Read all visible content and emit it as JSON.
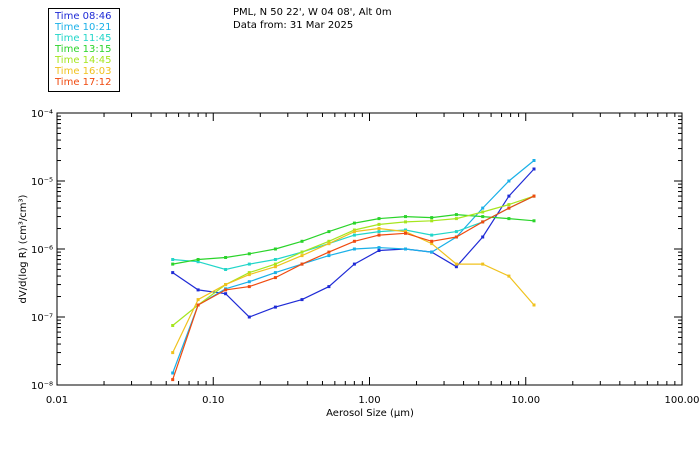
{
  "header": {
    "station": "PML, N 50 22', W 04 08', Alt 0m",
    "date": "Data from: 31 Mar 2025"
  },
  "legend": [
    {
      "label": "Time 08:46",
      "color": "#1f2bd6"
    },
    {
      "label": "Time 10:21",
      "color": "#1ab0e8"
    },
    {
      "label": "Time 11:45",
      "color": "#22d6c9"
    },
    {
      "label": "Time 13:15",
      "color": "#2ad42a"
    },
    {
      "label": "Time 14:45",
      "color": "#a6e61e"
    },
    {
      "label": "Time 16:03",
      "color": "#f0c21e"
    },
    {
      "label": "Time 17:12",
      "color": "#f04a0f"
    }
  ],
  "chart_data": {
    "type": "line",
    "title": "PML, N 50 22', W 04 08', Alt 0m",
    "subtitle": "Data from: 31 Mar 2025",
    "xlabel": "Aerosol Size (µm)",
    "ylabel": "dV/d(log R) (cm³/cm³)",
    "xscale": "log",
    "yscale": "log",
    "xlim": [
      0.01,
      100
    ],
    "ylim": [
      1e-08,
      0.0001
    ],
    "xticks": [
      0.01,
      0.1,
      1.0,
      10.0,
      100.0
    ],
    "xtick_labels": [
      "0.01",
      "0.10",
      "1.00",
      "10.00",
      "100.00"
    ],
    "yticks": [
      1e-08,
      1e-07,
      1e-06,
      1e-05,
      0.0001
    ],
    "ytick_labels": [
      "10⁻⁸",
      "10⁻⁷",
      "10⁻⁶",
      "10⁻⁵",
      "10⁻⁴"
    ],
    "x": [
      0.055,
      0.08,
      0.12,
      0.17,
      0.25,
      0.37,
      0.55,
      0.8,
      1.15,
      1.7,
      2.5,
      3.6,
      5.3,
      7.8,
      11.3
    ],
    "series": [
      {
        "name": "Time 08:46",
        "color": "#1f2bd6",
        "values": [
          4.5e-07,
          2.5e-07,
          2.2e-07,
          1e-07,
          1.4e-07,
          1.8e-07,
          2.8e-07,
          6e-07,
          9.5e-07,
          1e-06,
          9e-07,
          5.5e-07,
          1.5e-06,
          6e-06,
          1.5e-05
        ]
      },
      {
        "name": "Time 10:21",
        "color": "#1ab0e8",
        "values": [
          1.5e-08,
          1.5e-07,
          2.6e-07,
          3.3e-07,
          4.5e-07,
          6e-07,
          8e-07,
          1e-06,
          1.05e-06,
          1e-06,
          9e-07,
          1.5e-06,
          4e-06,
          1e-05,
          2e-05
        ]
      },
      {
        "name": "Time 11:45",
        "color": "#22d6c9",
        "values": [
          7e-07,
          6.5e-07,
          5e-07,
          6e-07,
          7e-07,
          9e-07,
          1.2e-06,
          1.6e-06,
          1.8e-06,
          1.9e-06,
          1.6e-06,
          1.8e-06,
          2.5e-06,
          4e-06,
          6e-06
        ]
      },
      {
        "name": "Time 13:15",
        "color": "#2ad42a",
        "values": [
          6e-07,
          7e-07,
          7.5e-07,
          8.5e-07,
          1e-06,
          1.3e-06,
          1.8e-06,
          2.4e-06,
          2.8e-06,
          3e-06,
          2.9e-06,
          3.2e-06,
          3e-06,
          2.8e-06,
          2.6e-06
        ]
      },
      {
        "name": "Time 14:45",
        "color": "#a6e61e",
        "values": [
          7.5e-08,
          1.5e-07,
          3e-07,
          4.5e-07,
          6e-07,
          9e-07,
          1.3e-06,
          1.9e-06,
          2.3e-06,
          2.5e-06,
          2.6e-06,
          2.8e-06,
          3.5e-06,
          4.5e-06,
          6e-06
        ]
      },
      {
        "name": "Time 16:03",
        "color": "#f0c21e",
        "values": [
          3e-08,
          1.8e-07,
          3e-07,
          4.2e-07,
          5.5e-07,
          8e-07,
          1.2e-06,
          1.8e-06,
          2e-06,
          1.8e-06,
          1.2e-06,
          6e-07,
          6e-07,
          4e-07,
          1.5e-07
        ]
      },
      {
        "name": "Time 17:12",
        "color": "#f04a0f",
        "values": [
          1.2e-08,
          1.5e-07,
          2.5e-07,
          2.8e-07,
          3.8e-07,
          6e-07,
          9e-07,
          1.3e-06,
          1.6e-06,
          1.7e-06,
          1.3e-06,
          1.5e-06,
          2.5e-06,
          4e-06,
          6e-06
        ]
      }
    ]
  }
}
